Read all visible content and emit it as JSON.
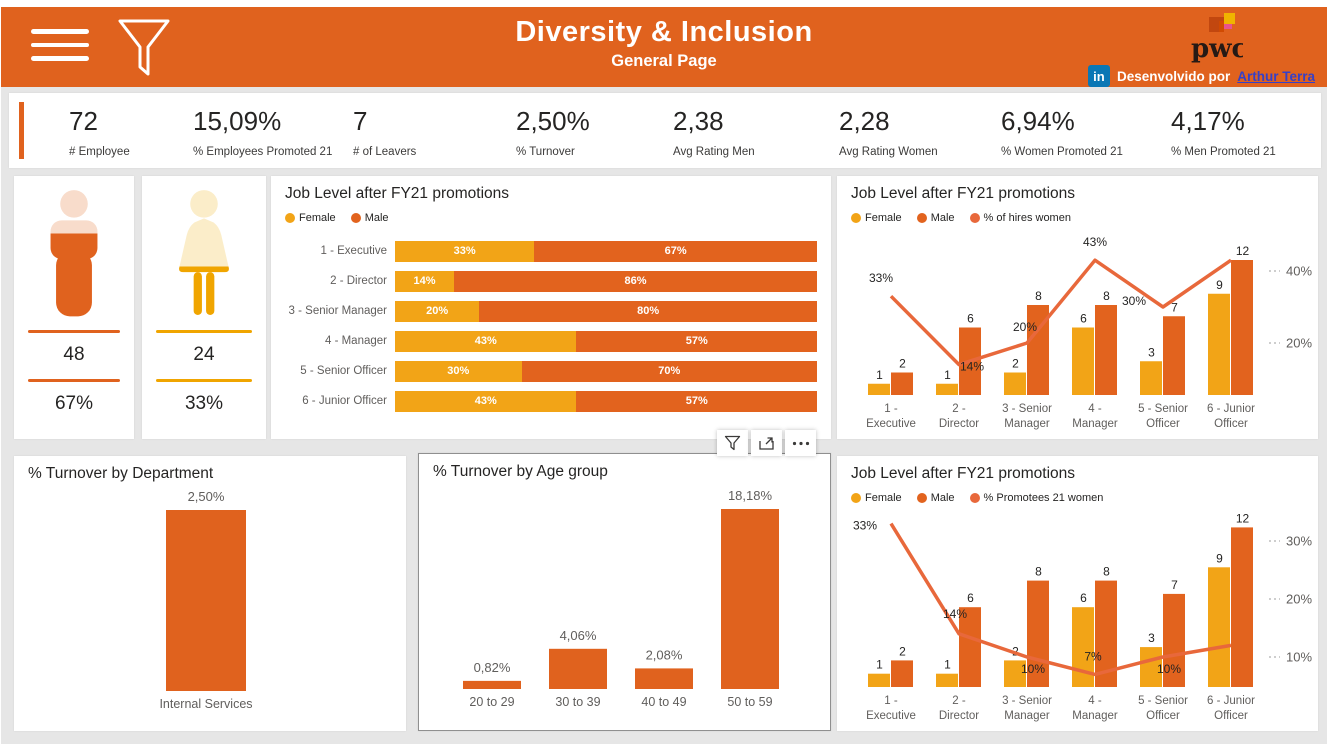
{
  "header": {
    "title": "Diversity & Inclusion",
    "subtitle": "General Page",
    "brand": "pwc",
    "linkedin_label": "in",
    "developed_by_prefix": "Desenvolvido por",
    "developed_by_link": "Arthur Terra"
  },
  "colors": {
    "header_orange": "#E0621E",
    "male_orange": "#E2631E",
    "female_amber": "#F2A417",
    "line_orange": "#E8683B",
    "female_gold": "#F0A500",
    "skin_light": "#F8DCCB",
    "cream_light": "#FBEDC9",
    "page_bg": "#E6E6E6",
    "text_dark": "#252423",
    "text_gray": "#605E5C",
    "link_blue": "#3640C8",
    "linkedin_blue": "#0A77B5"
  },
  "kpis": [
    {
      "value": "72",
      "label": "# Employee"
    },
    {
      "value": "15,09%",
      "label": "% Employees Promoted 21"
    },
    {
      "value": "7",
      "label": "# of Leavers"
    },
    {
      "value": "2,50%",
      "label": "% Turnover"
    },
    {
      "value": "2,38",
      "label": "Avg Rating Men"
    },
    {
      "value": "2,28",
      "label": "Avg Rating Women"
    },
    {
      "value": "6,94%",
      "label": "% Women Promoted 21"
    },
    {
      "value": "4,17%",
      "label": "% Men Promoted 21"
    }
  ],
  "gender_cards": {
    "male": {
      "count": "48",
      "percent": "67%"
    },
    "female": {
      "count": "24",
      "percent": "33%"
    }
  },
  "chart_data": [
    {
      "id": "job-level-stacked",
      "type": "bar",
      "variant": "stacked-horizontal-100",
      "title": "Job Level after FY21 promotions",
      "legend_position": "top",
      "categories": [
        "1 - Executive",
        "2 - Director",
        "3 - Senior Manager",
        "4 - Manager",
        "5 - Senior Officer",
        "6 - Junior Officer"
      ],
      "series": [
        {
          "name": "Female",
          "color": "#F2A417",
          "values": [
            33,
            14,
            20,
            43,
            30,
            43
          ],
          "labels": [
            "33%",
            "14%",
            "20%",
            "43%",
            "30%",
            "43%"
          ]
        },
        {
          "name": "Male",
          "color": "#E2631E",
          "values": [
            67,
            86,
            80,
            57,
            70,
            57
          ],
          "labels": [
            "67%",
            "86%",
            "80%",
            "57%",
            "70%",
            "57%"
          ]
        }
      ]
    },
    {
      "id": "job-level-hires",
      "type": "bar+line",
      "title": "Job Level after FY21 promotions",
      "legend_position": "top",
      "categories": [
        "1 - Executive",
        "2 - Director",
        "3 - Senior Manager",
        "4 - Manager",
        "5 - Senior Officer",
        "6 - Junior Officer"
      ],
      "tick_lines": [
        [
          "1 -",
          "Executive"
        ],
        [
          "2 -",
          "Director"
        ],
        [
          "3 - Senior",
          "Manager"
        ],
        [
          "4 -",
          "Manager"
        ],
        [
          "5 - Senior",
          "Officer"
        ],
        [
          "6 - Junior",
          "Officer"
        ]
      ],
      "ylim": [
        0,
        12
      ],
      "series": [
        {
          "name": "Female",
          "color": "#F2A417",
          "values": [
            1,
            1,
            2,
            6,
            3,
            9
          ]
        },
        {
          "name": "Male",
          "color": "#E2631E",
          "values": [
            2,
            6,
            8,
            8,
            7,
            12
          ]
        }
      ],
      "line": {
        "name": "% of hires women",
        "color": "#E8683B",
        "values": [
          33,
          14,
          20,
          43,
          30,
          43
        ],
        "labels": [
          "33%",
          "14%",
          "20%",
          "43%",
          "30%",
          ""
        ]
      },
      "y2_ticks": [
        40,
        20
      ],
      "y2_format": "%"
    },
    {
      "id": "turnover-department",
      "type": "bar",
      "title": "% Turnover by Department",
      "categories": [
        "Internal Services"
      ],
      "values": [
        2.5
      ],
      "labels": [
        "2,50%"
      ],
      "color": "#E0621E"
    },
    {
      "id": "turnover-age",
      "type": "bar",
      "title": "% Turnover by Age group",
      "categories": [
        "20 to 29",
        "30 to 39",
        "40 to 49",
        "50 to 59"
      ],
      "values": [
        0.82,
        4.06,
        2.08,
        18.18
      ],
      "labels": [
        "0,82%",
        "4,06%",
        "2,08%",
        "18,18%"
      ],
      "color": "#E0621E"
    },
    {
      "id": "job-level-promotees",
      "type": "bar+line",
      "title": "Job Level after FY21 promotions",
      "legend_position": "top",
      "categories": [
        "1 - Executive",
        "2 - Director",
        "3 - Senior Manager",
        "4 - Manager",
        "5 - Senior Officer",
        "6 - Junior Officer"
      ],
      "tick_lines": [
        [
          "1 -",
          "Executive"
        ],
        [
          "2 -",
          "Director"
        ],
        [
          "3 - Senior",
          "Manager"
        ],
        [
          "4 -",
          "Manager"
        ],
        [
          "5 - Senior",
          "Officer"
        ],
        [
          "6 - Junior",
          "Officer"
        ]
      ],
      "ylim": [
        0,
        12
      ],
      "series": [
        {
          "name": "Female",
          "color": "#F2A417",
          "values": [
            1,
            1,
            2,
            6,
            3,
            9
          ]
        },
        {
          "name": "Male",
          "color": "#E2631E",
          "values": [
            2,
            6,
            8,
            8,
            7,
            12
          ]
        }
      ],
      "line": {
        "name": "% Promotees 21 women",
        "color": "#E8683B",
        "values": [
          33,
          14,
          10,
          7,
          10,
          12
        ],
        "labels": [
          "33%",
          "14%",
          "10%",
          "7%",
          "10%",
          ""
        ]
      },
      "y2_ticks": [
        30,
        20,
        10
      ],
      "y2_format": "%"
    }
  ]
}
